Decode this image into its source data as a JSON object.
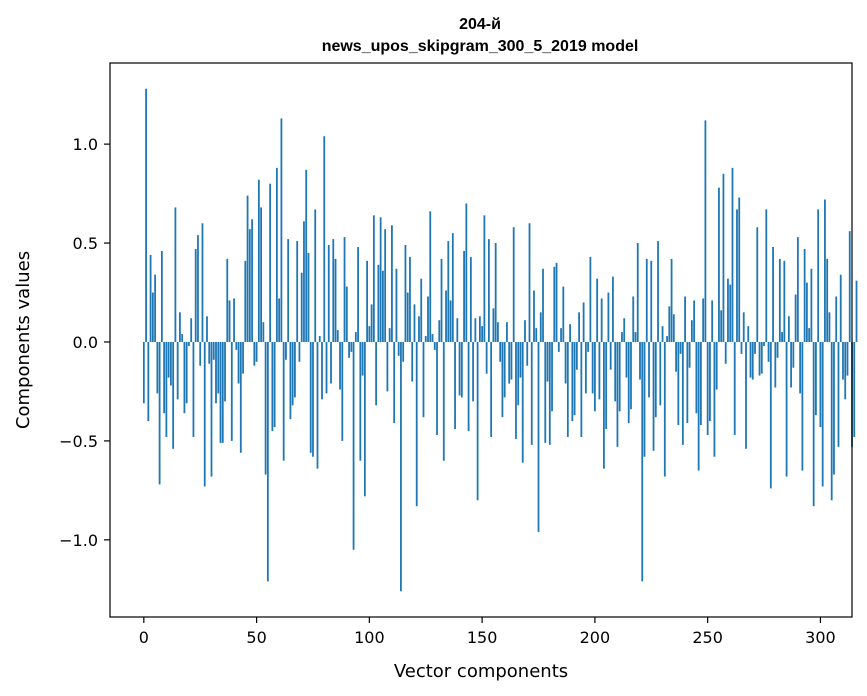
{
  "chart_data": {
    "type": "bar",
    "title_line1": "204-й",
    "title_line2": "news_upos_skipgram_300_5_2019 model",
    "xlabel": "Vector components",
    "ylabel": "Components values",
    "xlim": [
      -15,
      314
    ],
    "ylim": [
      -1.39,
      1.41
    ],
    "xticks": [
      0,
      50,
      100,
      150,
      200,
      250,
      300
    ],
    "yticks": [
      -1.0,
      -0.5,
      0.0,
      0.5,
      1.0
    ],
    "ytick_labels": [
      "−1.0",
      "−0.5",
      "0.0",
      "0.5",
      "1.0"
    ],
    "bar_color": "#1f77b4",
    "grid": false,
    "values": [
      -0.31,
      1.28,
      -0.4,
      0.44,
      0.25,
      0.34,
      -0.26,
      -0.72,
      0.46,
      -0.36,
      -0.48,
      -0.18,
      -0.22,
      -0.54,
      0.68,
      -0.29,
      0.15,
      0.04,
      -0.36,
      -0.31,
      -0.02,
      0.12,
      -0.48,
      0.47,
      0.54,
      -0.12,
      0.6,
      -0.73,
      0.13,
      -0.11,
      -0.68,
      -0.09,
      -0.31,
      -0.26,
      -0.51,
      -0.51,
      -0.3,
      0.42,
      0.21,
      -0.5,
      0.22,
      -0.04,
      -0.21,
      -0.56,
      -0.16,
      0.41,
      0.74,
      0.57,
      0.62,
      -0.12,
      -0.1,
      0.82,
      0.68,
      0.1,
      -0.67,
      -1.21,
      0.8,
      -0.45,
      -0.43,
      0.88,
      0.22,
      1.13,
      -0.6,
      -0.09,
      0.52,
      -0.39,
      -0.32,
      -0.28,
      0.51,
      -0.1,
      0.35,
      0.61,
      0.87,
      0.45,
      -0.56,
      -0.58,
      0.67,
      -0.64,
      0.03,
      -0.29,
      1.04,
      -0.26,
      0.49,
      -0.21,
      0.52,
      0.42,
      0.06,
      -0.24,
      -0.5,
      0.53,
      0.28,
      -0.08,
      -0.05,
      -1.05,
      0.05,
      0.48,
      -0.6,
      -0.17,
      -0.78,
      0.41,
      0.08,
      0.19,
      0.64,
      -0.32,
      0.39,
      0.63,
      0.36,
      0.57,
      -0.25,
      0.07,
      0.59,
      -0.41,
      0.37,
      -0.07,
      -1.26,
      -0.1,
      0.49,
      0.25,
      0.43,
      -0.2,
      0.19,
      -0.83,
      0.13,
      0.32,
      -0.38,
      0.03,
      0.23,
      0.66,
      0.04,
      -0.04,
      -0.47,
      0.11,
      0.42,
      -0.6,
      0.26,
      0.51,
      0.21,
      0.55,
      -0.44,
      0.12,
      -0.27,
      -0.28,
      0.46,
      0.7,
      -0.45,
      0.43,
      -0.3,
      0.12,
      -0.8,
      0.13,
      0.08,
      0.64,
      -0.16,
      0.52,
      -0.48,
      0.17,
      0.5,
      0.1,
      -0.1,
      -0.38,
      -0.28,
      0.1,
      -0.21,
      -0.19,
      0.58,
      -0.49,
      -0.32,
      -0.18,
      -0.61,
      0.11,
      -0.12,
      0.6,
      -0.52,
      0.26,
      0.07,
      -0.96,
      0.15,
      0.37,
      -0.51,
      -0.2,
      -0.52,
      -0.35,
      0.38,
      0.4,
      -0.05,
      0.07,
      0.28,
      -0.21,
      -0.48,
      0.09,
      -0.4,
      -0.37,
      -0.14,
      0.15,
      -0.48,
      0.2,
      -0.26,
      -0.05,
      0.43,
      -0.26,
      -0.35,
      0.32,
      -0.29,
      0.22,
      -0.64,
      -0.44,
      0.25,
      -0.14,
      0.33,
      -0.3,
      -0.53,
      -0.35,
      0.05,
      0.12,
      -0.18,
      -0.41,
      -0.34,
      0.23,
      0.05,
      0.5,
      -0.19,
      -1.21,
      -0.58,
      0.42,
      -0.28,
      0.41,
      -0.55,
      -0.38,
      0.51,
      -0.32,
      0.08,
      -0.68,
      0.03,
      0.18,
      0.42,
      0.14,
      -0.15,
      -0.42,
      -0.06,
      -0.52,
      0.23,
      -0.41,
      -0.13,
      0.11,
      0.21,
      -0.36,
      -0.65,
      -0.42,
      0.22,
      1.12,
      -0.47,
      -0.4,
      0.21,
      -0.58,
      -0.24,
      0.78,
      0.16,
      0.85,
      -0.11,
      0.32,
      0.29,
      0.88,
      -0.47,
      0.67,
      0.73,
      -0.06,
      0.15,
      -0.54,
      0.08,
      -0.18,
      -0.19,
      -0.06,
      0.58,
      -0.17,
      -0.16,
      -0.02,
      0.67,
      -0.1,
      -0.74,
      0.48,
      -0.23,
      -0.08,
      0.42,
      0.05,
      0.41,
      -0.68,
      0.13,
      -0.23,
      -0.13,
      0.24,
      0.53,
      -0.26,
      -0.65,
      0.47,
      0.3,
      0.07,
      0.37,
      -0.83,
      -0.37,
      0.67,
      -0.43,
      -0.73,
      0.72,
      0.42,
      0.15,
      -0.8,
      -0.67,
      0.23,
      -0.53,
      0.34,
      -0.19,
      -0.29,
      -0.17,
      0.56,
      -0.53,
      -0.48,
      0.31
    ]
  }
}
